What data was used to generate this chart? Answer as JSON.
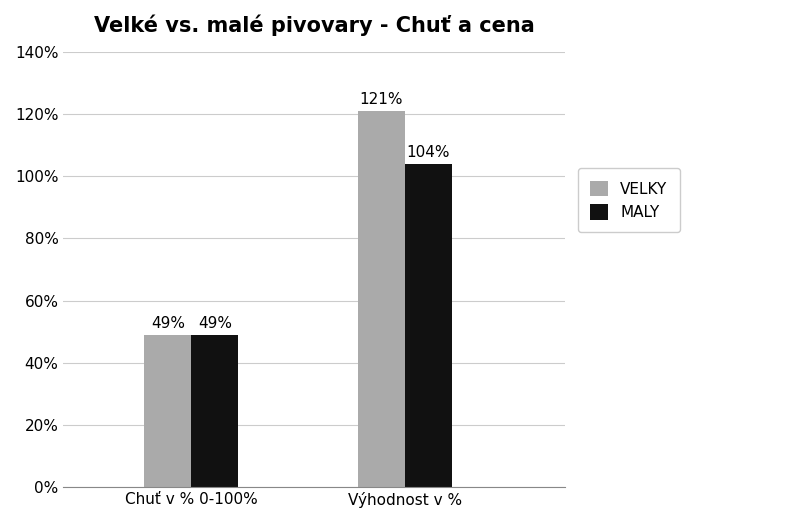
{
  "title": "Velké vs. malé pivovary - Chuť a cena",
  "categories": [
    "Chuť v % 0-100%",
    "Výhodnost v %"
  ],
  "series": [
    {
      "name": "VELKY",
      "values": [
        0.49,
        1.21
      ],
      "color": "#AAAAAA"
    },
    {
      "name": "MALY",
      "values": [
        0.49,
        1.04
      ],
      "color": "#111111"
    }
  ],
  "ylim": [
    0,
    1.4
  ],
  "yticks": [
    0.0,
    0.2,
    0.4,
    0.6,
    0.8,
    1.0,
    1.2,
    1.4
  ],
  "bar_width": 0.22,
  "bar_labels": [
    [
      "49%",
      "121%"
    ],
    [
      "49%",
      "104%"
    ]
  ],
  "background_color": "#FFFFFF",
  "title_fontsize": 15,
  "label_fontsize": 11,
  "tick_fontsize": 11,
  "annot_fontsize": 11,
  "xlim": [
    -0.6,
    1.75
  ]
}
